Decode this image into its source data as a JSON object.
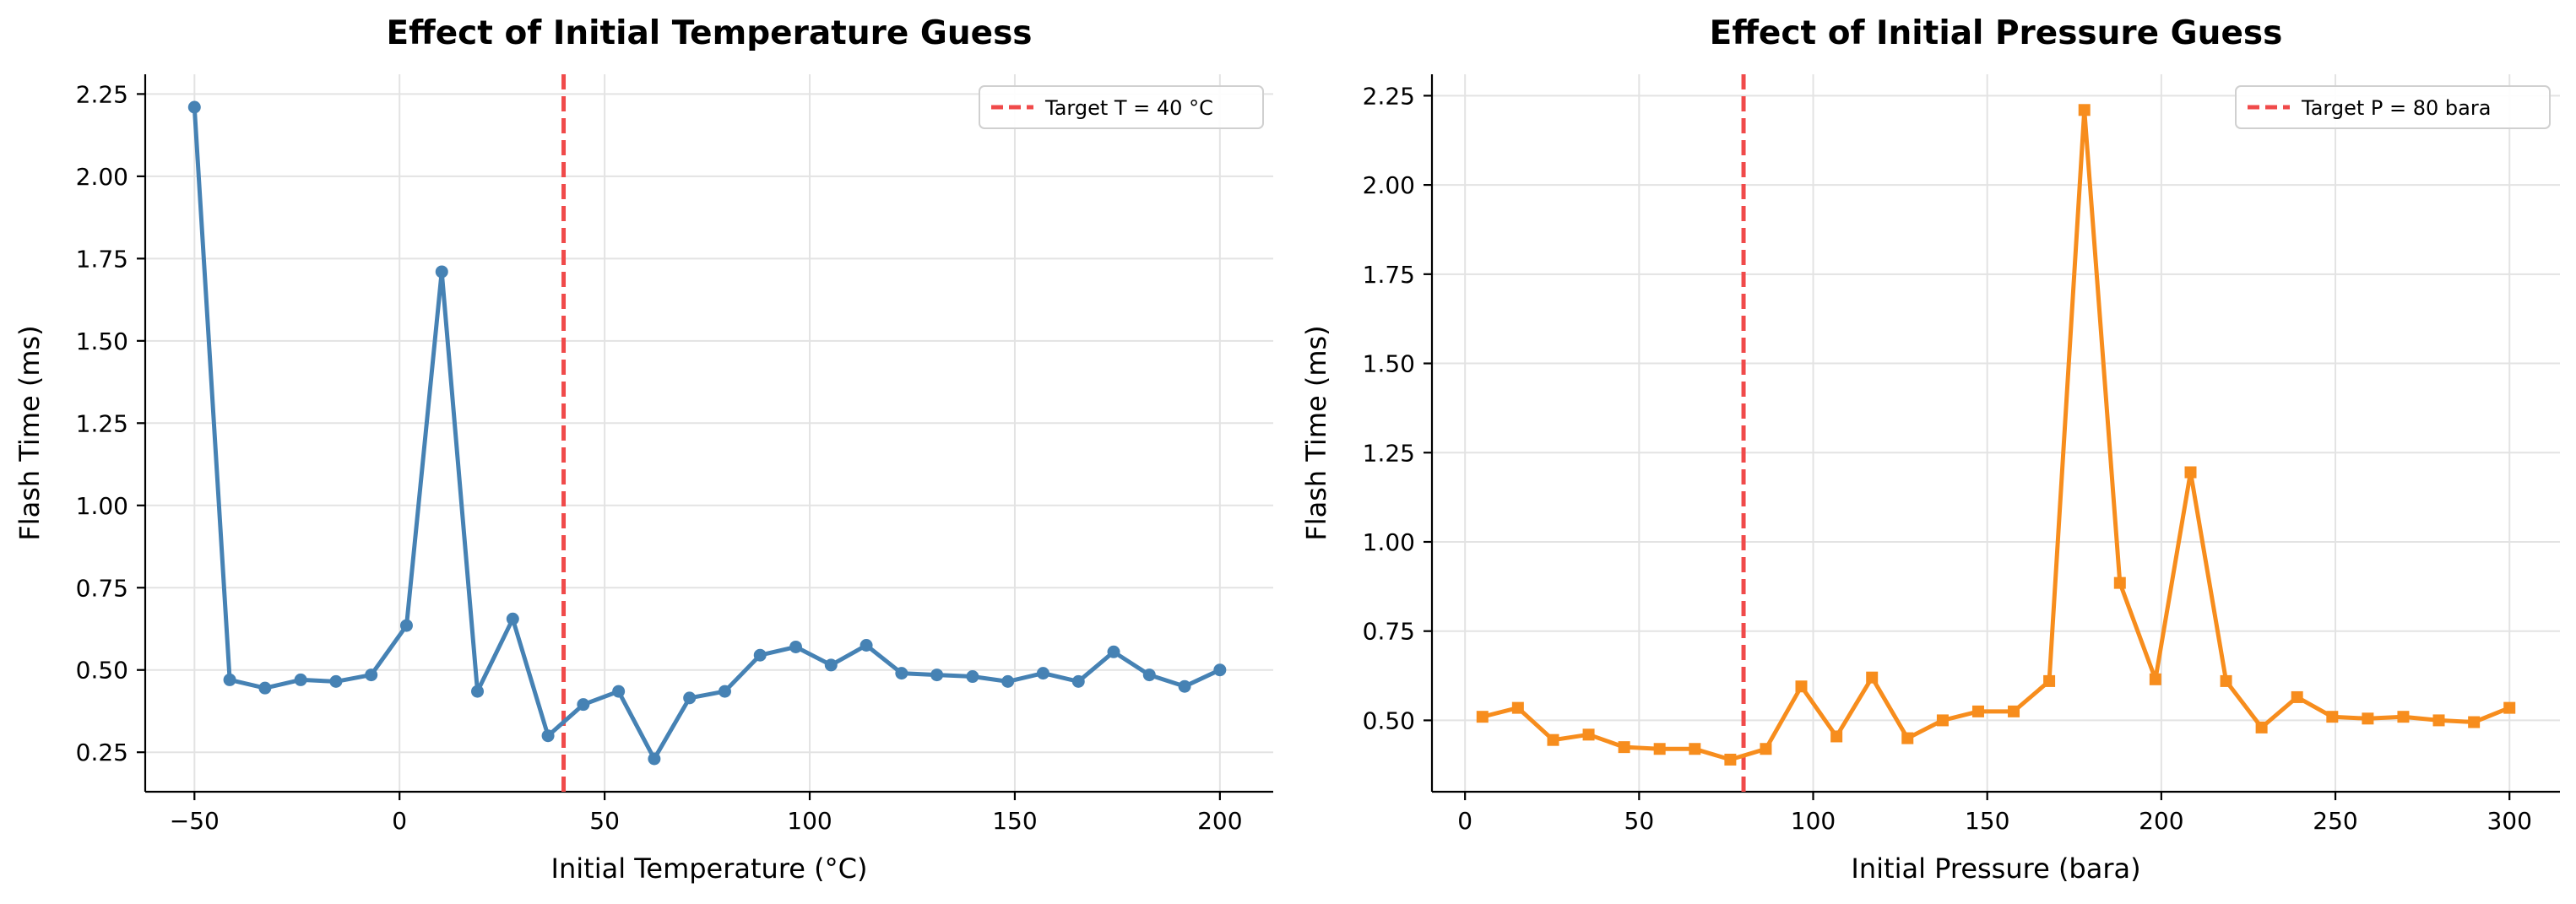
{
  "chart_data": [
    {
      "type": "line",
      "title": "Effect of Initial Temperature Guess",
      "xlabel": "Initial Temperature (°C)",
      "ylabel": "Flash Time (ms)",
      "xlim": [
        -62,
        213
      ],
      "ylim": [
        0.13,
        2.31
      ],
      "xticks": [
        -50,
        0,
        50,
        100,
        150,
        200
      ],
      "xtick_labels": [
        "−50",
        "0",
        "50",
        "100",
        "150",
        "200"
      ],
      "yticks": [
        0.25,
        0.5,
        0.75,
        1.0,
        1.25,
        1.5,
        1.75,
        2.0,
        2.25
      ],
      "ytick_labels": [
        "0.25",
        "0.50",
        "0.75",
        "1.00",
        "1.25",
        "1.50",
        "1.75",
        "2.00",
        "2.25"
      ],
      "grid": true,
      "legend_position": "top-right",
      "marker": "circle",
      "color": "#4682b4",
      "reference_line": {
        "x": 40,
        "label": "Target T = 40 °C",
        "color": "#f04a4a",
        "style": "dashed"
      },
      "series": [
        {
          "x": [
            -50,
            -41.4,
            -32.8,
            -24.1,
            -15.5,
            -6.9,
            1.7,
            10.3,
            19.0,
            27.6,
            36.2,
            44.8,
            53.4,
            62.1,
            70.7,
            79.3,
            87.9,
            96.6,
            105.2,
            113.8,
            122.4,
            131.0,
            139.7,
            148.3,
            156.9,
            165.5,
            174.1,
            182.8,
            191.4,
            200
          ],
          "y": [
            2.21,
            0.47,
            0.445,
            0.47,
            0.465,
            0.485,
            0.635,
            1.71,
            0.435,
            0.655,
            0.3,
            0.395,
            0.435,
            0.23,
            0.415,
            0.435,
            0.545,
            0.57,
            0.515,
            0.575,
            0.49,
            0.485,
            0.48,
            0.465,
            0.49,
            0.465,
            0.555,
            0.485,
            0.45,
            0.5
          ]
        }
      ]
    },
    {
      "type": "line",
      "title": "Effect of Initial Pressure Guess",
      "xlabel": "Initial Pressure (bara)",
      "ylabel": "Flash Time (ms)",
      "xlim": [
        -9.5,
        314.5
      ],
      "ylim": [
        0.3,
        2.31
      ],
      "xticks": [
        0,
        50,
        100,
        150,
        200,
        250,
        300
      ],
      "xtick_labels": [
        "0",
        "50",
        "100",
        "150",
        "200",
        "250",
        "300"
      ],
      "yticks": [
        0.5,
        0.75,
        1.0,
        1.25,
        1.5,
        1.75,
        2.0,
        2.25
      ],
      "ytick_labels": [
        "0.50",
        "0.75",
        "1.00",
        "1.25",
        "1.50",
        "1.75",
        "2.00",
        "2.25"
      ],
      "grid": true,
      "legend_position": "top-right",
      "marker": "square",
      "color": "#f78d1d",
      "reference_line": {
        "x": 80,
        "label": "Target P = 80 bara",
        "color": "#f04a4a",
        "style": "dashed"
      },
      "series": [
        {
          "x": [
            5,
            15.2,
            25.3,
            35.5,
            45.7,
            55.9,
            66.0,
            76.2,
            86.4,
            96.6,
            106.7,
            116.9,
            127.1,
            137.2,
            147.4,
            157.6,
            167.8,
            177.9,
            188.1,
            198.3,
            208.4,
            218.6,
            228.8,
            239.0,
            249.1,
            259.3,
            269.5,
            279.7,
            289.8,
            300
          ],
          "y": [
            0.51,
            0.535,
            0.445,
            0.46,
            0.425,
            0.42,
            0.42,
            0.39,
            0.42,
            0.595,
            0.455,
            0.62,
            0.45,
            0.5,
            0.525,
            0.525,
            0.61,
            2.21,
            0.885,
            0.615,
            1.195,
            0.61,
            0.48,
            0.565,
            0.51,
            0.505,
            0.51,
            0.5,
            0.495,
            0.535
          ]
        }
      ]
    }
  ]
}
